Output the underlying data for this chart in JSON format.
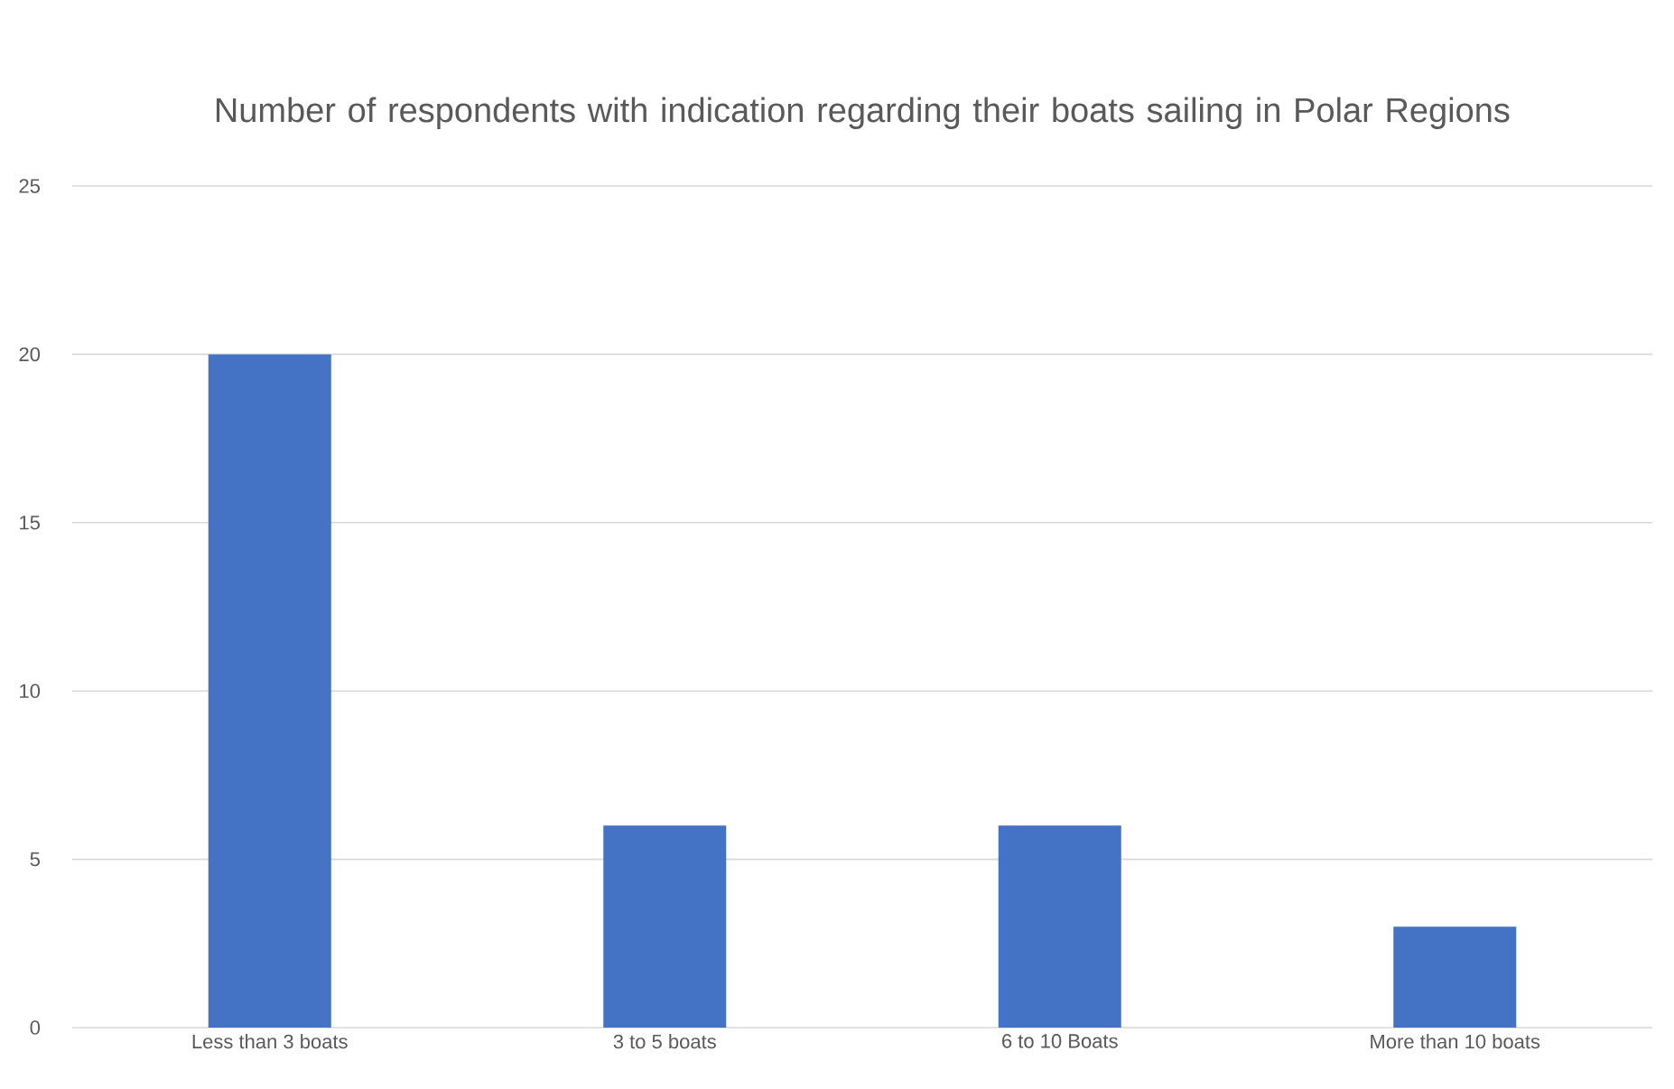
{
  "chart_data": {
    "type": "bar",
    "title": "Number of respondents with indication regarding their boats sailing in Polar Regions",
    "categories": [
      "Less than 3 boats",
      "3 to 5 boats",
      "6 to 10 Boats",
      "More than 10 boats"
    ],
    "values": [
      20,
      6,
      6,
      3
    ],
    "color": "#4472c4",
    "ylim": [
      0,
      25
    ],
    "yticks": [
      0,
      5,
      10,
      15,
      20,
      25
    ],
    "grid": "y"
  }
}
